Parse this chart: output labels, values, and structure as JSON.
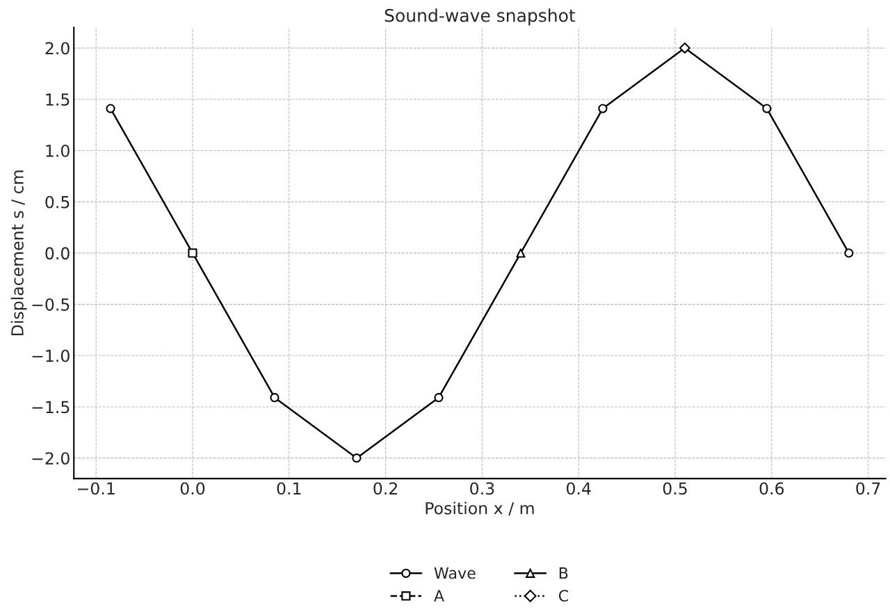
{
  "chart_data": {
    "type": "line",
    "title": "Sound-wave snapshot",
    "xlabel": "Position x / m",
    "ylabel": "Displacement s / cm",
    "xlim": [
      -0.123,
      0.718
    ],
    "ylim": [
      -2.2,
      2.2
    ],
    "xticks": [
      {
        "value": -0.1,
        "label": "−0.1"
      },
      {
        "value": 0.0,
        "label": "0.0"
      },
      {
        "value": 0.1,
        "label": "0.1"
      },
      {
        "value": 0.2,
        "label": "0.2"
      },
      {
        "value": 0.3,
        "label": "0.3"
      },
      {
        "value": 0.4,
        "label": "0.4"
      },
      {
        "value": 0.5,
        "label": "0.5"
      },
      {
        "value": 0.6,
        "label": "0.6"
      },
      {
        "value": 0.7,
        "label": "0.7"
      }
    ],
    "yticks": [
      {
        "value": -2.0,
        "label": "−2.0"
      },
      {
        "value": -1.5,
        "label": "−1.5"
      },
      {
        "value": -1.0,
        "label": "−1.0"
      },
      {
        "value": -0.5,
        "label": "−0.5"
      },
      {
        "value": 0.0,
        "label": "0.0"
      },
      {
        "value": 0.5,
        "label": "0.5"
      },
      {
        "value": 1.0,
        "label": "1.0"
      },
      {
        "value": 1.5,
        "label": "1.5"
      },
      {
        "value": 2.0,
        "label": "2.0"
      }
    ],
    "grid": true,
    "legend": "bottom",
    "series": [
      {
        "name": "Wave",
        "color": "#000000",
        "marker": "circle",
        "line_style": "solid",
        "x": [
          -0.085,
          0,
          0.085,
          0.17,
          0.255,
          0.34,
          0.425,
          0.51,
          0.595,
          0.68
        ],
        "values": [
          1.41,
          0,
          -1.41,
          -2,
          -1.41,
          0,
          1.41,
          2,
          1.41,
          0
        ]
      },
      {
        "name": "A",
        "color": "#000000",
        "marker": "square",
        "line_style": "dashed",
        "x": [
          0
        ],
        "values": [
          0
        ]
      },
      {
        "name": "B",
        "color": "#000000",
        "marker": "triangle",
        "line_style": "solid",
        "x": [
          0.34
        ],
        "values": [
          0
        ]
      },
      {
        "name": "C",
        "color": "#000000",
        "marker": "diamond",
        "line_style": "dotted",
        "x": [
          0.51
        ],
        "values": [
          2
        ]
      }
    ]
  }
}
